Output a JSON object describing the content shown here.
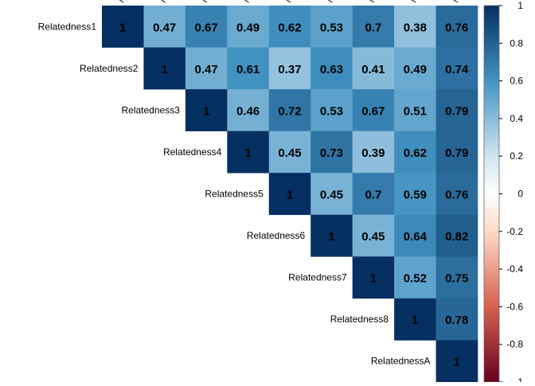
{
  "chart_data": {
    "type": "heatmap",
    "title": "",
    "layout": "upper-triangle",
    "variables": [
      "Relatedness1",
      "Relatedness2",
      "Relatedness3",
      "Relatedness4",
      "Relatedness5",
      "Relatedness6",
      "Relatedness7",
      "Relatedness8",
      "RelatednessA"
    ],
    "matrix": [
      [
        1,
        0.47,
        0.67,
        0.49,
        0.62,
        0.53,
        0.7,
        0.38,
        0.76
      ],
      [
        null,
        1,
        0.47,
        0.61,
        0.37,
        0.63,
        0.41,
        0.49,
        0.74
      ],
      [
        null,
        null,
        1,
        0.46,
        0.72,
        0.53,
        0.67,
        0.51,
        0.79
      ],
      [
        null,
        null,
        null,
        1,
        0.45,
        0.73,
        0.39,
        0.62,
        0.79
      ],
      [
        null,
        null,
        null,
        null,
        1,
        0.45,
        0.7,
        0.59,
        0.76
      ],
      [
        null,
        null,
        null,
        null,
        null,
        1,
        0.45,
        0.64,
        0.82
      ],
      [
        null,
        null,
        null,
        null,
        null,
        null,
        1,
        0.52,
        0.75
      ],
      [
        null,
        null,
        null,
        null,
        null,
        null,
        null,
        1,
        0.78
      ],
      [
        null,
        null,
        null,
        null,
        null,
        null,
        null,
        null,
        1
      ]
    ],
    "value_labels": [
      [
        "1",
        "0.47",
        "0.67",
        "0.49",
        "0.62",
        "0.53",
        "0.7",
        "0.38",
        "0.76"
      ],
      [
        "",
        "1",
        "0.47",
        "0.61",
        "0.37",
        "0.63",
        "0.41",
        "0.49",
        "0.74"
      ],
      [
        "",
        "",
        "1",
        "0.46",
        "0.72",
        "0.53",
        "0.67",
        "0.51",
        "0.79"
      ],
      [
        "",
        "",
        "",
        "1",
        "0.45",
        "0.73",
        "0.39",
        "0.62",
        "0.79"
      ],
      [
        "",
        "",
        "",
        "",
        "1",
        "0.45",
        "0.7",
        "0.59",
        "0.76"
      ],
      [
        "",
        "",
        "",
        "",
        "",
        "1",
        "0.45",
        "0.64",
        "0.82"
      ],
      [
        "",
        "",
        "",
        "",
        "",
        "",
        "1",
        "0.52",
        "0.75"
      ],
      [
        "",
        "",
        "",
        "",
        "",
        "",
        "",
        "1",
        "0.78"
      ],
      [
        "",
        "",
        "",
        "",
        "",
        "",
        "",
        "",
        "1"
      ]
    ],
    "colorbar": {
      "range": [
        -1,
        1
      ],
      "tick_values": [
        1,
        0.8,
        0.6,
        0.4,
        0.2,
        0,
        -0.2,
        -0.4,
        -0.6,
        -0.8,
        -1
      ],
      "tick_labels": [
        "1",
        "0.8",
        "0.6",
        "0.4",
        "0.2",
        "0",
        "-0.2",
        "-0.4",
        "-0.6",
        "-0.8",
        "-1"
      ],
      "placement": "right"
    },
    "colorscale": {
      "stops": [
        -1,
        -0.6,
        -0.2,
        0,
        0.2,
        0.6,
        1
      ],
      "colors": [
        "#67001f",
        "#d6604d",
        "#fddbc7",
        "#ffffff",
        "#d1e5f0",
        "#4393c3",
        "#053061"
      ]
    },
    "text_color": "#000000",
    "grid": false
  }
}
